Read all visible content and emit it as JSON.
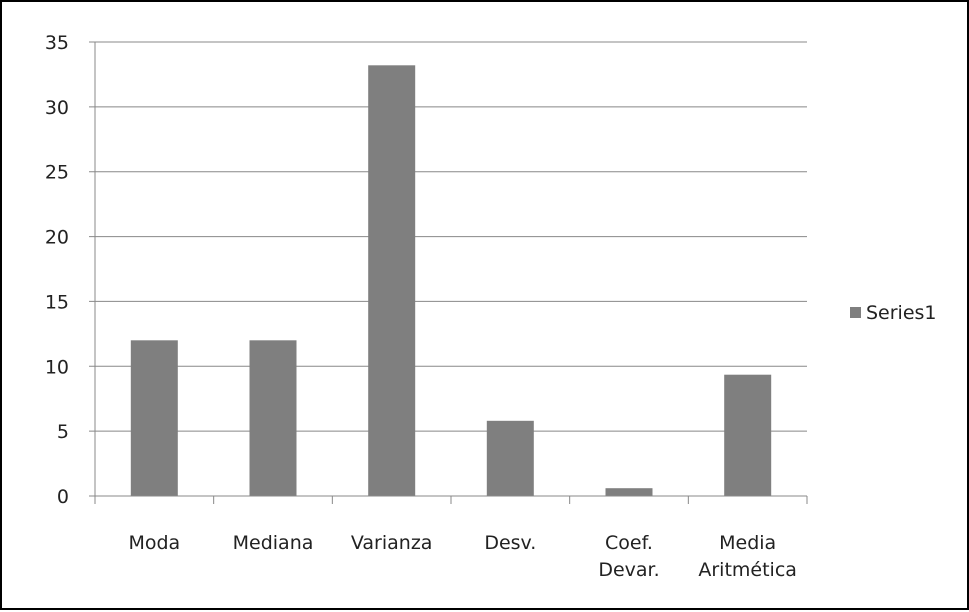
{
  "chart_data": {
    "type": "bar",
    "categories": [
      [
        "Moda"
      ],
      [
        "Mediana"
      ],
      [
        "Varianza"
      ],
      [
        "Desv."
      ],
      [
        "Coef.",
        "Devar."
      ],
      [
        "Media",
        "Aritmética"
      ]
    ],
    "series": [
      {
        "name": "Series1",
        "values": [
          12,
          12,
          33.2,
          5.8,
          0.6,
          9.35
        ],
        "color": "#7f7f7f"
      }
    ],
    "ylim": [
      0,
      35
    ],
    "yticks": [
      0,
      5,
      10,
      15,
      20,
      25,
      30,
      35
    ],
    "grid": true,
    "gridColor": "#888888",
    "axisColor": "#888888",
    "legend_position": "right"
  }
}
